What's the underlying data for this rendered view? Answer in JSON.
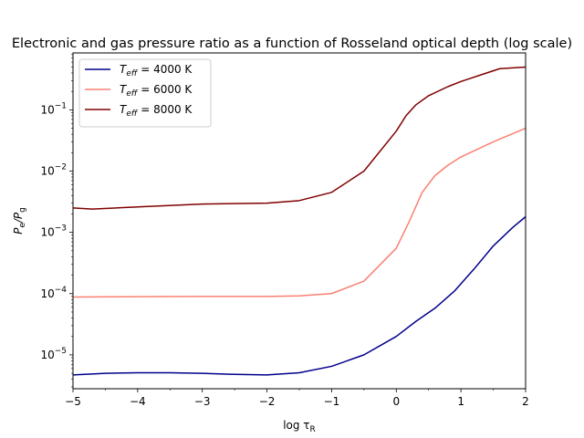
{
  "chart_data": {
    "type": "line",
    "title": "Electronic and gas pressure ratio as a function of Rosseland optical depth (log scale)",
    "xlabel": "log τ_R",
    "ylabel": "P_e/P_g",
    "xlim": [
      -5,
      2
    ],
    "ylim": [
      2.8e-06,
      0.85
    ],
    "y_scale": "log",
    "x_ticks": [
      -5,
      -4,
      -3,
      -2,
      -1,
      0,
      1,
      2
    ],
    "x_tick_labels": [
      "−5",
      "−4",
      "−3",
      "−2",
      "−1",
      "0",
      "1",
      "2"
    ],
    "y_ticks": [
      1e-05,
      0.0001,
      0.001,
      0.01,
      0.1
    ],
    "y_tick_labels": [
      [
        "10",
        "−5"
      ],
      [
        "10",
        "−4"
      ],
      [
        "10",
        "−3"
      ],
      [
        "10",
        "−2"
      ],
      [
        "10",
        "−1"
      ]
    ],
    "grid": false,
    "legend_position": "upper-left",
    "series": [
      {
        "name": "T_eff = 4000 K",
        "color": "#00008b",
        "x": [
          -5.0,
          -4.5,
          -4.0,
          -3.5,
          -3.0,
          -2.5,
          -2.0,
          -1.5,
          -1.0,
          -0.5,
          0.0,
          0.3,
          0.6,
          0.9,
          1.2,
          1.5,
          1.8,
          2.0
        ],
        "y": [
          4.7e-06,
          5e-06,
          5.1e-06,
          5.1e-06,
          5e-06,
          4.8e-06,
          4.7e-06,
          5.1e-06,
          6.5e-06,
          1e-05,
          2e-05,
          3.5e-05,
          5.8e-05,
          0.00011,
          0.00025,
          0.0006,
          0.0012,
          0.0018
        ]
      },
      {
        "name": "T_eff = 6000 K",
        "color": "#fa8072",
        "x": [
          -5.0,
          -4.0,
          -3.0,
          -2.0,
          -1.5,
          -1.0,
          -0.5,
          0.0,
          0.2,
          0.4,
          0.6,
          0.8,
          1.0,
          1.5,
          2.0
        ],
        "y": [
          8.8e-05,
          8.9e-05,
          9e-05,
          9e-05,
          9.2e-05,
          0.0001,
          0.00016,
          0.00055,
          0.0015,
          0.0045,
          0.0085,
          0.0125,
          0.017,
          0.03,
          0.05
        ]
      },
      {
        "name": "T_eff = 8000 K",
        "color": "#800000",
        "x": [
          -5.0,
          -4.7,
          -4.0,
          -3.0,
          -2.0,
          -1.5,
          -1.0,
          -0.5,
          0.0,
          0.15,
          0.3,
          0.5,
          0.8,
          1.0,
          1.3,
          1.6,
          2.0
        ],
        "y": [
          0.0025,
          0.0024,
          0.0026,
          0.0029,
          0.003,
          0.0033,
          0.0045,
          0.01,
          0.045,
          0.08,
          0.12,
          0.17,
          0.24,
          0.29,
          0.37,
          0.47,
          0.5
        ]
      }
    ]
  }
}
